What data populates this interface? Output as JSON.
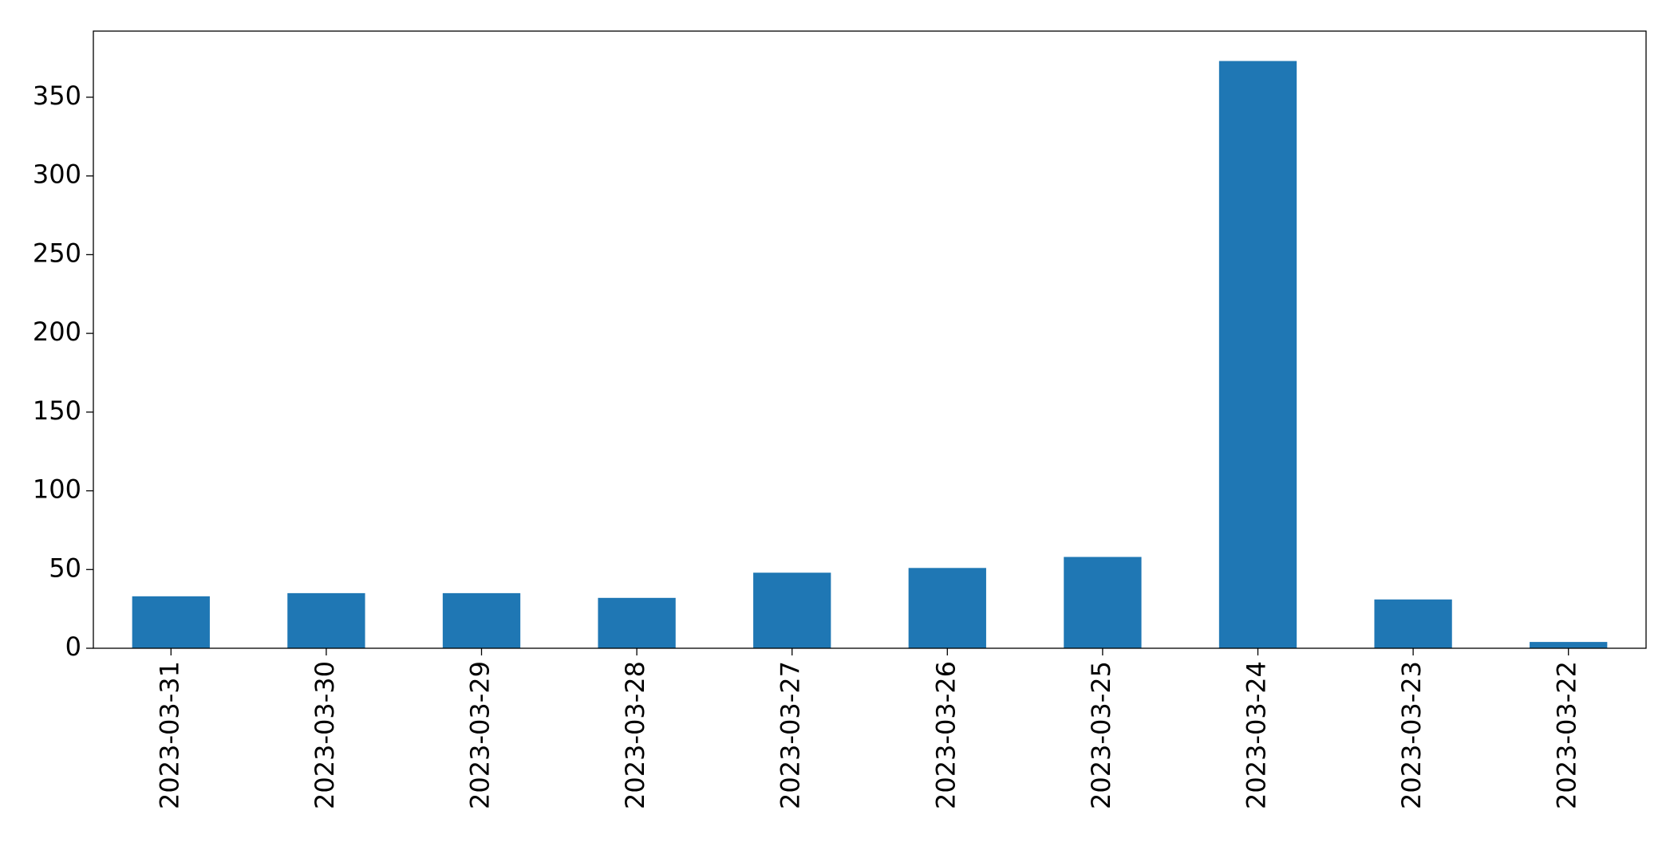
{
  "chart_data": {
    "type": "bar",
    "categories": [
      "2023-03-31",
      "2023-03-30",
      "2023-03-29",
      "2023-03-28",
      "2023-03-27",
      "2023-03-26",
      "2023-03-25",
      "2023-03-24",
      "2023-03-23",
      "2023-03-22"
    ],
    "values": [
      33,
      35,
      35,
      32,
      48,
      51,
      58,
      373,
      31,
      4
    ],
    "color": "#1f77b4",
    "ylim": [
      0,
      392
    ],
    "yticks": [
      0,
      50,
      100,
      150,
      200,
      250,
      300,
      350
    ],
    "grid": false
  }
}
